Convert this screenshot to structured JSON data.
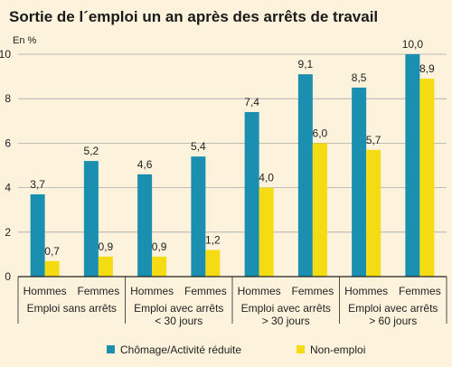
{
  "chart_data": {
    "type": "bar",
    "title": "Sortie de l´emploi un an après des arrêts de travail",
    "unit_label": "En %",
    "ylim": [
      0,
      10
    ],
    "yticks": [
      0,
      2,
      4,
      6,
      8,
      10
    ],
    "grid": true,
    "legend_position": "bottom",
    "groups": [
      {
        "label_lines": [
          "Emploi sans arrêts"
        ],
        "categories": [
          "Hommes",
          "Femmes"
        ]
      },
      {
        "label_lines": [
          "Emploi avec arrêts",
          "< 30 jours"
        ],
        "categories": [
          "Hommes",
          "Femmes"
        ]
      },
      {
        "label_lines": [
          "Emploi avec arrêts",
          "> 30 jours"
        ],
        "categories": [
          "Hommes",
          "Femmes"
        ]
      },
      {
        "label_lines": [
          "Emploi avec arrêts",
          "> 60 jours"
        ],
        "categories": [
          "Hommes",
          "Femmes"
        ]
      }
    ],
    "categories": [
      "Hommes",
      "Femmes",
      "Hommes",
      "Femmes",
      "Hommes",
      "Femmes",
      "Hommes",
      "Femmes"
    ],
    "series": [
      {
        "name": "Chômage/Activité réduite",
        "color": "#1a8fb0",
        "values": [
          3.7,
          5.2,
          4.6,
          5.4,
          7.4,
          9.1,
          8.5,
          10.0
        ],
        "labels": [
          "3,7",
          "5,2",
          "4,6",
          "5,4",
          "7,4",
          "9,1",
          "8,5",
          "10,0"
        ]
      },
      {
        "name": "Non-emploi",
        "color": "#f5dc12",
        "values": [
          0.7,
          0.9,
          0.9,
          1.2,
          4.0,
          6.0,
          5.7,
          8.9
        ],
        "labels": [
          "0,7",
          "0,9",
          "0,9",
          "1,2",
          "4,0",
          "6,0",
          "5,7",
          "8,9"
        ]
      }
    ]
  }
}
